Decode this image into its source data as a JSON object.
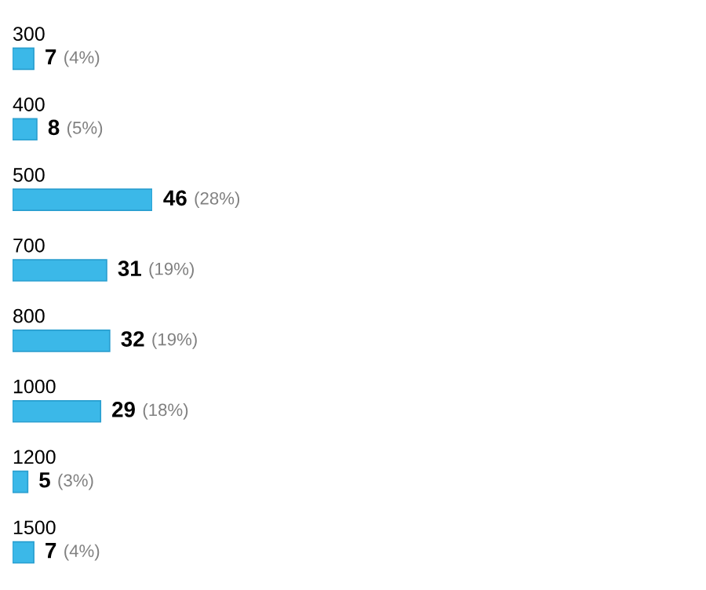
{
  "chart_data": {
    "type": "bar",
    "orientation": "horizontal",
    "categories": [
      "300",
      "400",
      "500",
      "700",
      "800",
      "1000",
      "1200",
      "1500"
    ],
    "values": [
      7,
      8,
      46,
      31,
      32,
      29,
      5,
      7
    ],
    "value_labels": [
      "7 (4%)",
      "8 (5%)",
      "46 (28%)",
      "31 (19%)",
      "32 (19%)",
      "29 (18%)",
      "5 (3%)",
      "7 (4%)"
    ],
    "color": "#3bb8e8"
  }
}
